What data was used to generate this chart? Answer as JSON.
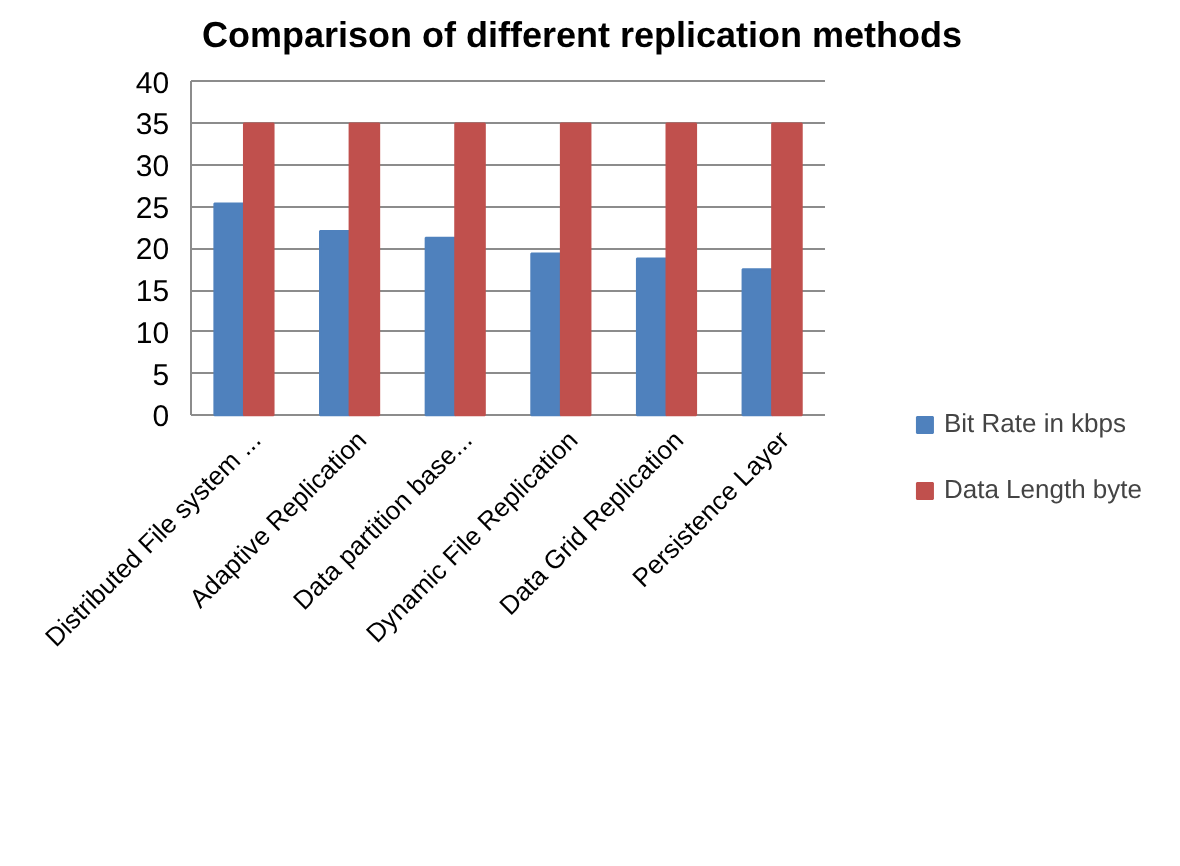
{
  "chart_data": {
    "type": "bar",
    "title": "Comparison of different replication methods",
    "categories": [
      "Distributed File system ...",
      "Adaptive Replication",
      "Data partition base...",
      "Dynamic File Replication",
      "Data Grid Replication",
      "Persistence Layer"
    ],
    "series": [
      {
        "name": "Bit Rate in kbps",
        "color": "#4f81bd",
        "values": [
          25.4,
          22.1,
          21.3,
          19.4,
          18.8,
          17.5
        ]
      },
      {
        "name": "Data Length byte",
        "color": "#c0504d",
        "values": [
          35,
          35,
          35,
          35,
          35,
          35
        ]
      }
    ],
    "ylim": [
      0,
      40
    ],
    "yticks": [
      0,
      5,
      10,
      15,
      20,
      25,
      30,
      35,
      40
    ],
    "grid": "y",
    "legend": "right"
  }
}
